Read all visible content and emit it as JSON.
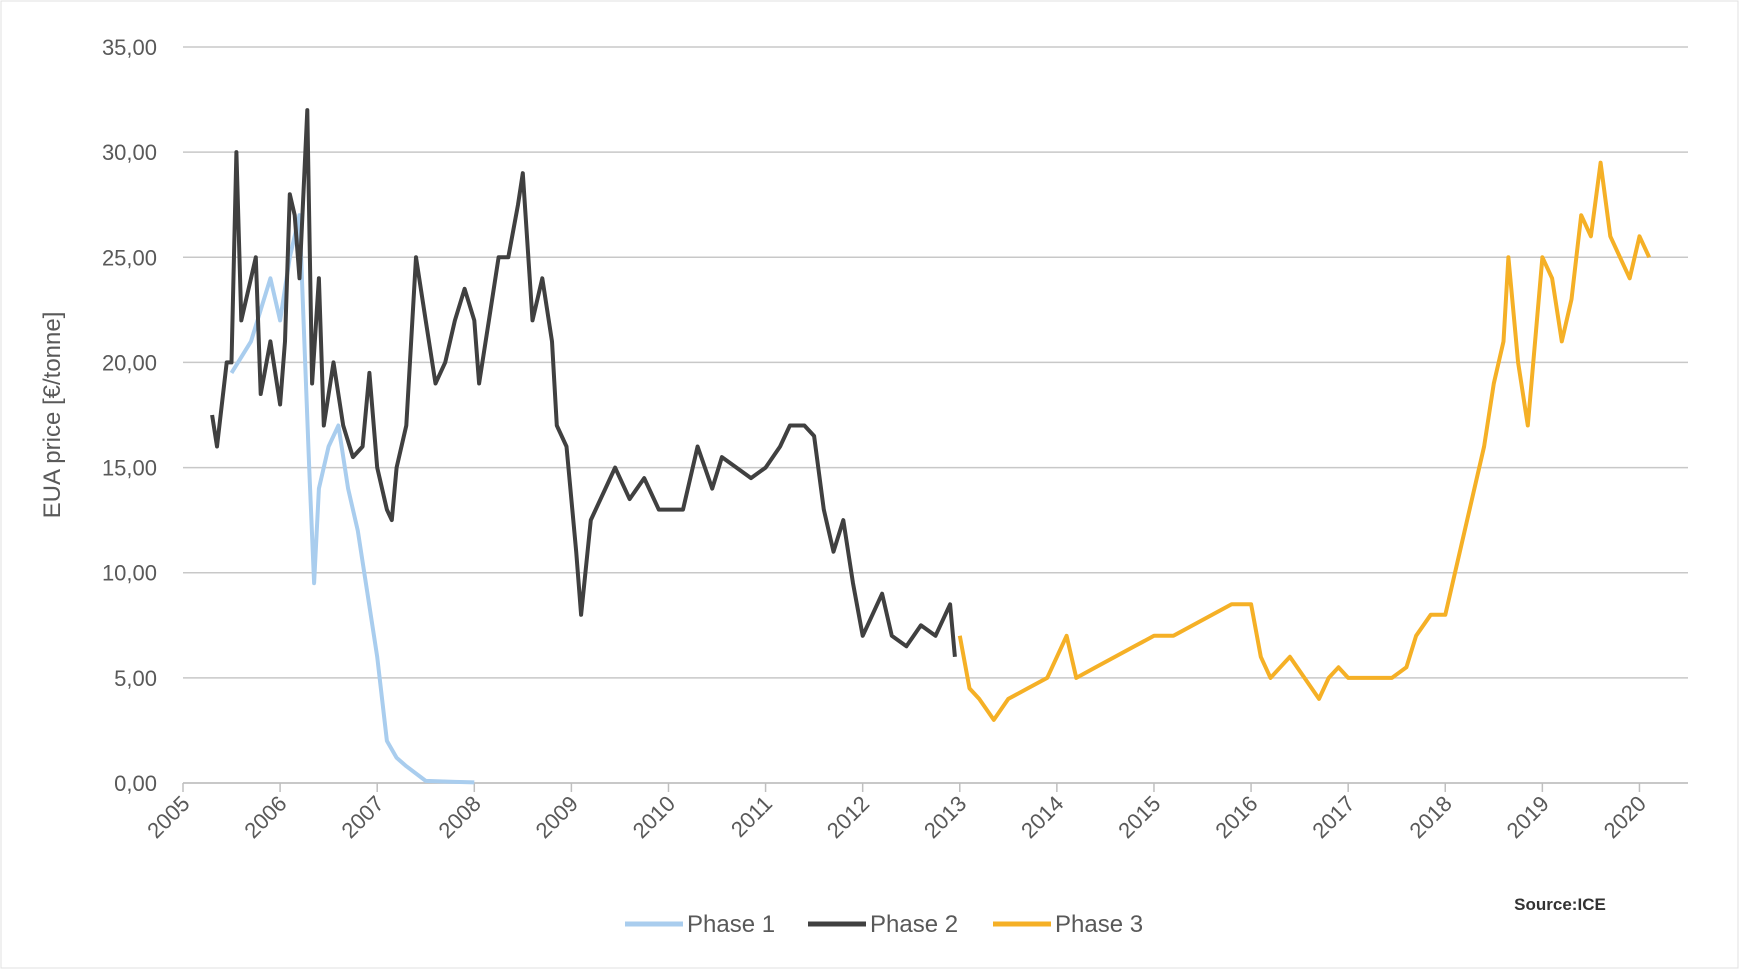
{
  "chart_data": {
    "type": "line",
    "y_label": "EUA price [€/tonne]",
    "source": "Source:ICE",
    "xlim": [
      2005,
      2020.5
    ],
    "xticks": [
      2005,
      2006,
      2007,
      2008,
      2009,
      2010,
      2011,
      2012,
      2013,
      2014,
      2015,
      2016,
      2017,
      2018,
      2019,
      2020
    ],
    "ylim": [
      0,
      35
    ],
    "yticks": [
      {
        "value": 0,
        "label": "0,00"
      },
      {
        "value": 5,
        "label": "5,00"
      },
      {
        "value": 10,
        "label": "10,00"
      },
      {
        "value": 15,
        "label": "15,00"
      },
      {
        "value": 20,
        "label": "20,00"
      },
      {
        "value": 25,
        "label": "25,00"
      },
      {
        "value": 30,
        "label": "30,00"
      },
      {
        "value": 35,
        "label": "35,00"
      }
    ],
    "grid": true,
    "legend": "bottom",
    "series": [
      {
        "name": "Phase 1",
        "color": "#a9cdee",
        "x": [
          2005.5,
          2005.7,
          2005.9,
          2006.0,
          2006.1,
          2006.2,
          2006.3,
          2006.35,
          2006.4,
          2006.5,
          2006.6,
          2006.7,
          2006.8,
          2006.9,
          2007.0,
          2007.1,
          2007.2,
          2007.3,
          2007.5,
          2007.8,
          2008.0
        ],
        "values": [
          19.5,
          21,
          24,
          22,
          25,
          27,
          15,
          9.5,
          14,
          16,
          17,
          14,
          12,
          9,
          6,
          2,
          1.2,
          0.8,
          0.1,
          0.05,
          0.03
        ]
      },
      {
        "name": "Phase 2",
        "color": "#404040",
        "x": [
          2005.3,
          2005.35,
          2005.45,
          2005.5,
          2005.55,
          2005.6,
          2005.7,
          2005.75,
          2005.8,
          2005.9,
          2006.0,
          2006.05,
          2006.1,
          2006.15,
          2006.2,
          2006.28,
          2006.33,
          2006.4,
          2006.45,
          2006.55,
          2006.65,
          2006.75,
          2006.85,
          2006.92,
          2007.0,
          2007.1,
          2007.15,
          2007.2,
          2007.3,
          2007.4,
          2007.5,
          2007.6,
          2007.7,
          2007.8,
          2007.9,
          2008.0,
          2008.05,
          2008.15,
          2008.25,
          2008.35,
          2008.45,
          2008.5,
          2008.6,
          2008.7,
          2008.8,
          2008.85,
          2008.95,
          2009.05,
          2009.1,
          2009.2,
          2009.35,
          2009.45,
          2009.6,
          2009.75,
          2009.9,
          2010.0,
          2010.15,
          2010.3,
          2010.45,
          2010.55,
          2010.7,
          2010.85,
          2011.0,
          2011.15,
          2011.25,
          2011.4,
          2011.5,
          2011.6,
          2011.7,
          2011.8,
          2011.9,
          2012.0,
          2012.1,
          2012.2,
          2012.3,
          2012.45,
          2012.6,
          2012.75,
          2012.9,
          2012.95
        ],
        "values": [
          17.5,
          16,
          20,
          20,
          30,
          22,
          24,
          25,
          18.5,
          21,
          18,
          21,
          28,
          27,
          24,
          32,
          19,
          24,
          17,
          20,
          17,
          15.5,
          16,
          19.5,
          15,
          13,
          12.5,
          15,
          17,
          25,
          22,
          19,
          20,
          22,
          23.5,
          22,
          19,
          22,
          25,
          25,
          27.5,
          29,
          22,
          24,
          21,
          17,
          16,
          11,
          8,
          12.5,
          14,
          15,
          13.5,
          14.5,
          13,
          13,
          13,
          16,
          14,
          15.5,
          15,
          14.5,
          15,
          16,
          17,
          17,
          16.5,
          13,
          11,
          12.5,
          9.5,
          7,
          8,
          9,
          7,
          6.5,
          7.5,
          7,
          8.5,
          6
        ]
      },
      {
        "name": "Phase 3",
        "color": "#f5b026",
        "x": [
          2013.0,
          2013.1,
          2013.2,
          2013.35,
          2013.5,
          2013.7,
          2013.9,
          2014.1,
          2014.2,
          2014.4,
          2014.6,
          2014.8,
          2015.0,
          2015.2,
          2015.4,
          2015.6,
          2015.8,
          2016.0,
          2016.1,
          2016.2,
          2016.3,
          2016.4,
          2016.55,
          2016.7,
          2016.8,
          2016.9,
          2017.0,
          2017.15,
          2017.3,
          2017.45,
          2017.6,
          2017.7,
          2017.85,
          2018.0,
          2018.1,
          2018.2,
          2018.3,
          2018.4,
          2018.5,
          2018.6,
          2018.65,
          2018.75,
          2018.85,
          2019.0,
          2019.1,
          2019.2,
          2019.3,
          2019.4,
          2019.5,
          2019.6,
          2019.7,
          2019.8,
          2019.9,
          2020.0,
          2020.1
        ],
        "values": [
          7,
          4.5,
          4,
          3,
          4,
          4.5,
          5,
          7,
          5,
          5.5,
          6,
          6.5,
          7,
          7,
          7.5,
          8,
          8.5,
          8.5,
          6,
          5,
          5.5,
          6,
          5,
          4,
          5,
          5.5,
          5,
          5,
          5,
          5,
          5.5,
          7,
          8,
          8,
          10,
          12,
          14,
          16,
          19,
          21,
          25,
          20,
          17,
          25,
          24,
          21,
          23,
          27,
          26,
          29.5,
          26,
          25,
          24,
          26,
          25
        ]
      }
    ]
  }
}
